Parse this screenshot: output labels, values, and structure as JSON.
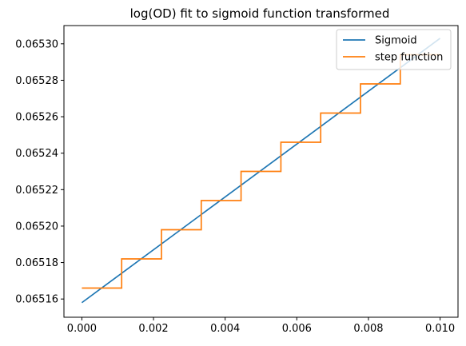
{
  "chart_data": {
    "type": "line",
    "title": "log(OD) fit to sigmoid function transformed",
    "xlabel": "",
    "ylabel": "",
    "xlim": [
      -0.0005,
      0.0105
    ],
    "ylim": [
      0.06515,
      0.06531
    ],
    "xticks": [
      0.0,
      0.002,
      0.004,
      0.006,
      0.008,
      0.01
    ],
    "xtick_labels": [
      "0.000",
      "0.002",
      "0.004",
      "0.006",
      "0.008",
      "0.010"
    ],
    "yticks": [
      0.06516,
      0.06518,
      0.0652,
      0.06522,
      0.06524,
      0.06526,
      0.06528,
      0.0653
    ],
    "ytick_labels": [
      "0.06516",
      "0.06518",
      "0.06520",
      "0.06522",
      "0.06524",
      "0.06526",
      "0.06528",
      "0.06530"
    ],
    "grid": false,
    "legend_position": "top-right",
    "series": [
      {
        "name": "Sigmoid",
        "style": "line",
        "color": "#1f77b4",
        "x": [
          0.0,
          0.01
        ],
        "y": [
          0.065158,
          0.065303
        ]
      },
      {
        "name": "step function",
        "style": "step",
        "color": "#ff7f0e",
        "x": [
          0.0,
          0.001111,
          0.002222,
          0.003333,
          0.004444,
          0.005556,
          0.006667,
          0.007778,
          0.008889,
          0.01
        ],
        "y": [
          0.065166,
          0.065182,
          0.065198,
          0.065214,
          0.06523,
          0.065246,
          0.065262,
          0.065278,
          0.065294,
          0.065294
        ]
      }
    ]
  }
}
